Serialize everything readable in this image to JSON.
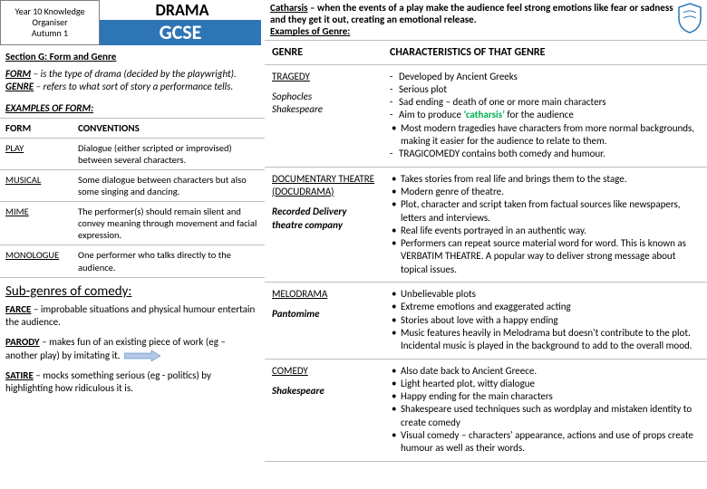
{
  "colors": {
    "accent": "#2e75b6",
    "border": "#bfbfbf",
    "text": "#000000",
    "highlight": "#00b050"
  },
  "header": {
    "meta_l1": "Year 10 Knowledge",
    "meta_l2": "Organiser",
    "meta_l3": "Autumn 1",
    "subject": "DRAMA",
    "level": "GCSE"
  },
  "catharsis": {
    "label": "Catharsis",
    "text": " – when the events of a play make the audience feel strong emotions like fear or sadness and they get it out, creating an emotional release.",
    "examples_label": "Examples of Genre:"
  },
  "sectionG": {
    "title": "Section G: Form and Genre",
    "form_label": "FORM",
    "form_def": " – is the type of drama (decided by the playwright).",
    "genre_label": "GENRE",
    "genre_def": " – refers to what sort of story a performance tells.",
    "examples_title": "EXAMPLES OF FORM:"
  },
  "formTable": {
    "col1": "FORM",
    "col2": "CONVENTIONS",
    "rows": [
      {
        "form": "PLAY",
        "conv": "Dialogue (either scripted or improvised) between several characters."
      },
      {
        "form": "MUSICAL",
        "conv": "Some dialogue between characters but also some singing and dancing."
      },
      {
        "form": "MIME",
        "conv": "The performer(s) should remain silent and convey meaning through movement and facial expression."
      },
      {
        "form": "MONOLOGUE",
        "conv": "One performer who talks directly to the audience."
      }
    ]
  },
  "subgenre": {
    "title": "Sub-genres of comedy:",
    "farce_label": "FARCE",
    "farce_text": " – improbable situations and physical humour entertain the audience.",
    "parody_label": "PARODY",
    "parody_text": " – makes fun of an existing piece of work (eg – another play) by imitating it.",
    "satire_label": "SATIRE",
    "satire_text": " – mocks something serious (eg - politics) by highlighting how ridiculous it is."
  },
  "genreTable": {
    "col1": "GENRE",
    "col2": "CHARACTERISTICS OF THAT GENRE",
    "rows": [
      {
        "name": "TRAGEDY",
        "sub": "Sophocles\nShakespeare",
        "chars_dash": [
          "Developed by Ancient Greeks",
          "Serious plot",
          "Sad ending – death of one or more main characters",
          "Aim to produce ‘catharsis’ for the audience"
        ],
        "chars_bul": [
          "Most modern tragedies have characters from more normal backgrounds, making it easier for the audience to relate to them."
        ],
        "chars_dash2": [
          "TRAGICOMEDY contains both comedy and humour."
        ]
      },
      {
        "name": "DOCUMENTARY THEATRE (DOCUDRAMA)",
        "sub": "Recorded Delivery theatre company",
        "chars_bul": [
          "Takes stories from real life and brings them to the stage.",
          "Modern genre of theatre.",
          "Plot, character and script taken from factual sources like newspapers, letters and interviews.",
          "Real life events portrayed in an authentic way.",
          "Performers can repeat source material word for word. This is known as VERBATIM THEATRE. A popular way to deliver strong message about topical issues."
        ]
      },
      {
        "name": "MELODRAMA",
        "sub": "Pantomime",
        "chars_bul": [
          "Unbelievable plots",
          "Extreme emotions and exaggerated acting",
          "Stories about love with a happy ending",
          "Music features heavily in Melodrama but doesn't contribute to the plot. Incidental music is played in the background to add to the overall mood."
        ]
      },
      {
        "name": "COMEDY",
        "sub": "Shakespeare",
        "chars_bul": [
          "Also date back to Ancient Greece.",
          "Light hearted plot, witty dialogue",
          "Happy ending for the main characters",
          "Shakespeare used techniques such as wordplay and mistaken identity to create comedy",
          "Visual comedy – characters' appearance, actions and use of props create humour as well as their words."
        ]
      }
    ]
  }
}
